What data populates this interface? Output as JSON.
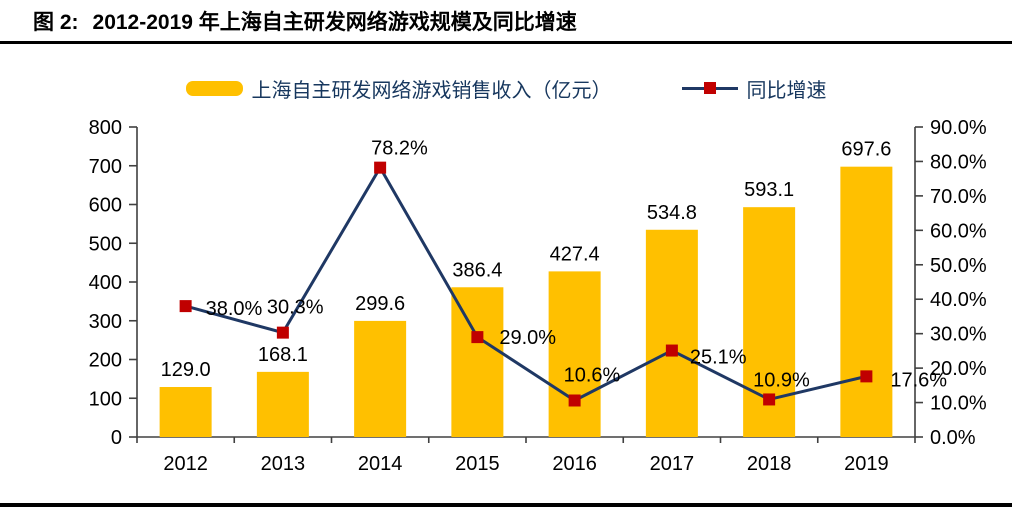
{
  "header": {
    "figure_label": "图 2:",
    "title": "2012-2019 年上海自主研发网络游戏规模及同比增速"
  },
  "chart_data": {
    "type": "combo-bar-line",
    "categories": [
      "2012",
      "2013",
      "2014",
      "2015",
      "2016",
      "2017",
      "2018",
      "2019"
    ],
    "series": [
      {
        "name": "上海自主研发网络游戏销售收入（亿元）",
        "type": "bar",
        "axis": "left",
        "color": "#FFC000",
        "values": [
          129.0,
          168.1,
          299.6,
          386.4,
          427.4,
          534.8,
          593.1,
          697.6
        ],
        "labels": [
          "129.0",
          "168.1",
          "299.6",
          "386.4",
          "427.4",
          "534.8",
          "593.1",
          "697.6"
        ]
      },
      {
        "name": "同比增速",
        "type": "line",
        "axis": "right",
        "color": "#1F3864",
        "marker": "square",
        "marker_color": "#C00000",
        "values": [
          38.0,
          30.3,
          78.2,
          29.0,
          10.6,
          25.1,
          10.9,
          17.6
        ],
        "labels": [
          "38.0%",
          "30.3%",
          "78.2%",
          "29.0%",
          "10.6%",
          "25.1%",
          "10.9%",
          "17.6%"
        ]
      }
    ],
    "left_axis": {
      "min": 0,
      "max": 800,
      "step": 100,
      "tick_labels": [
        "800",
        "700",
        "600",
        "500",
        "400",
        "300",
        "200",
        "100",
        "0"
      ]
    },
    "right_axis": {
      "min": 0,
      "max": 90,
      "step": 10,
      "tick_labels": [
        "90.0%",
        "80.0%",
        "70.0%",
        "60.0%",
        "50.0%",
        "40.0%",
        "30.0%",
        "20.0%",
        "10.0%",
        "0.0%"
      ]
    },
    "legend_position": "top-center",
    "grid": false
  },
  "colors": {
    "bar": "#FFC000",
    "line": "#1F3864",
    "marker": "#C00000",
    "axis": "#404040",
    "text": "#000000",
    "legend_text": "#17375E"
  }
}
